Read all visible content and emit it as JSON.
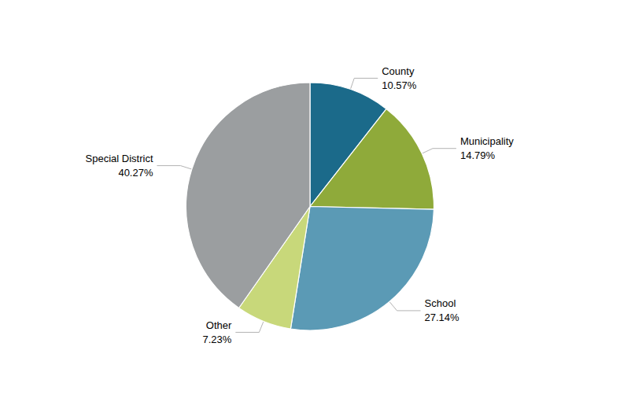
{
  "chart_data": {
    "type": "pie",
    "categories": [
      "County",
      "Municipality",
      "School",
      "Other",
      "Special District"
    ],
    "values": [
      10.57,
      14.79,
      27.14,
      7.23,
      40.27
    ],
    "value_labels": [
      "10.57%",
      "14.79%",
      "27.14%",
      "7.23%",
      "40.27%"
    ],
    "colors": [
      "#1b6a8a",
      "#8faa3a",
      "#5b9ab5",
      "#c8d87a",
      "#9b9ea0"
    ]
  }
}
